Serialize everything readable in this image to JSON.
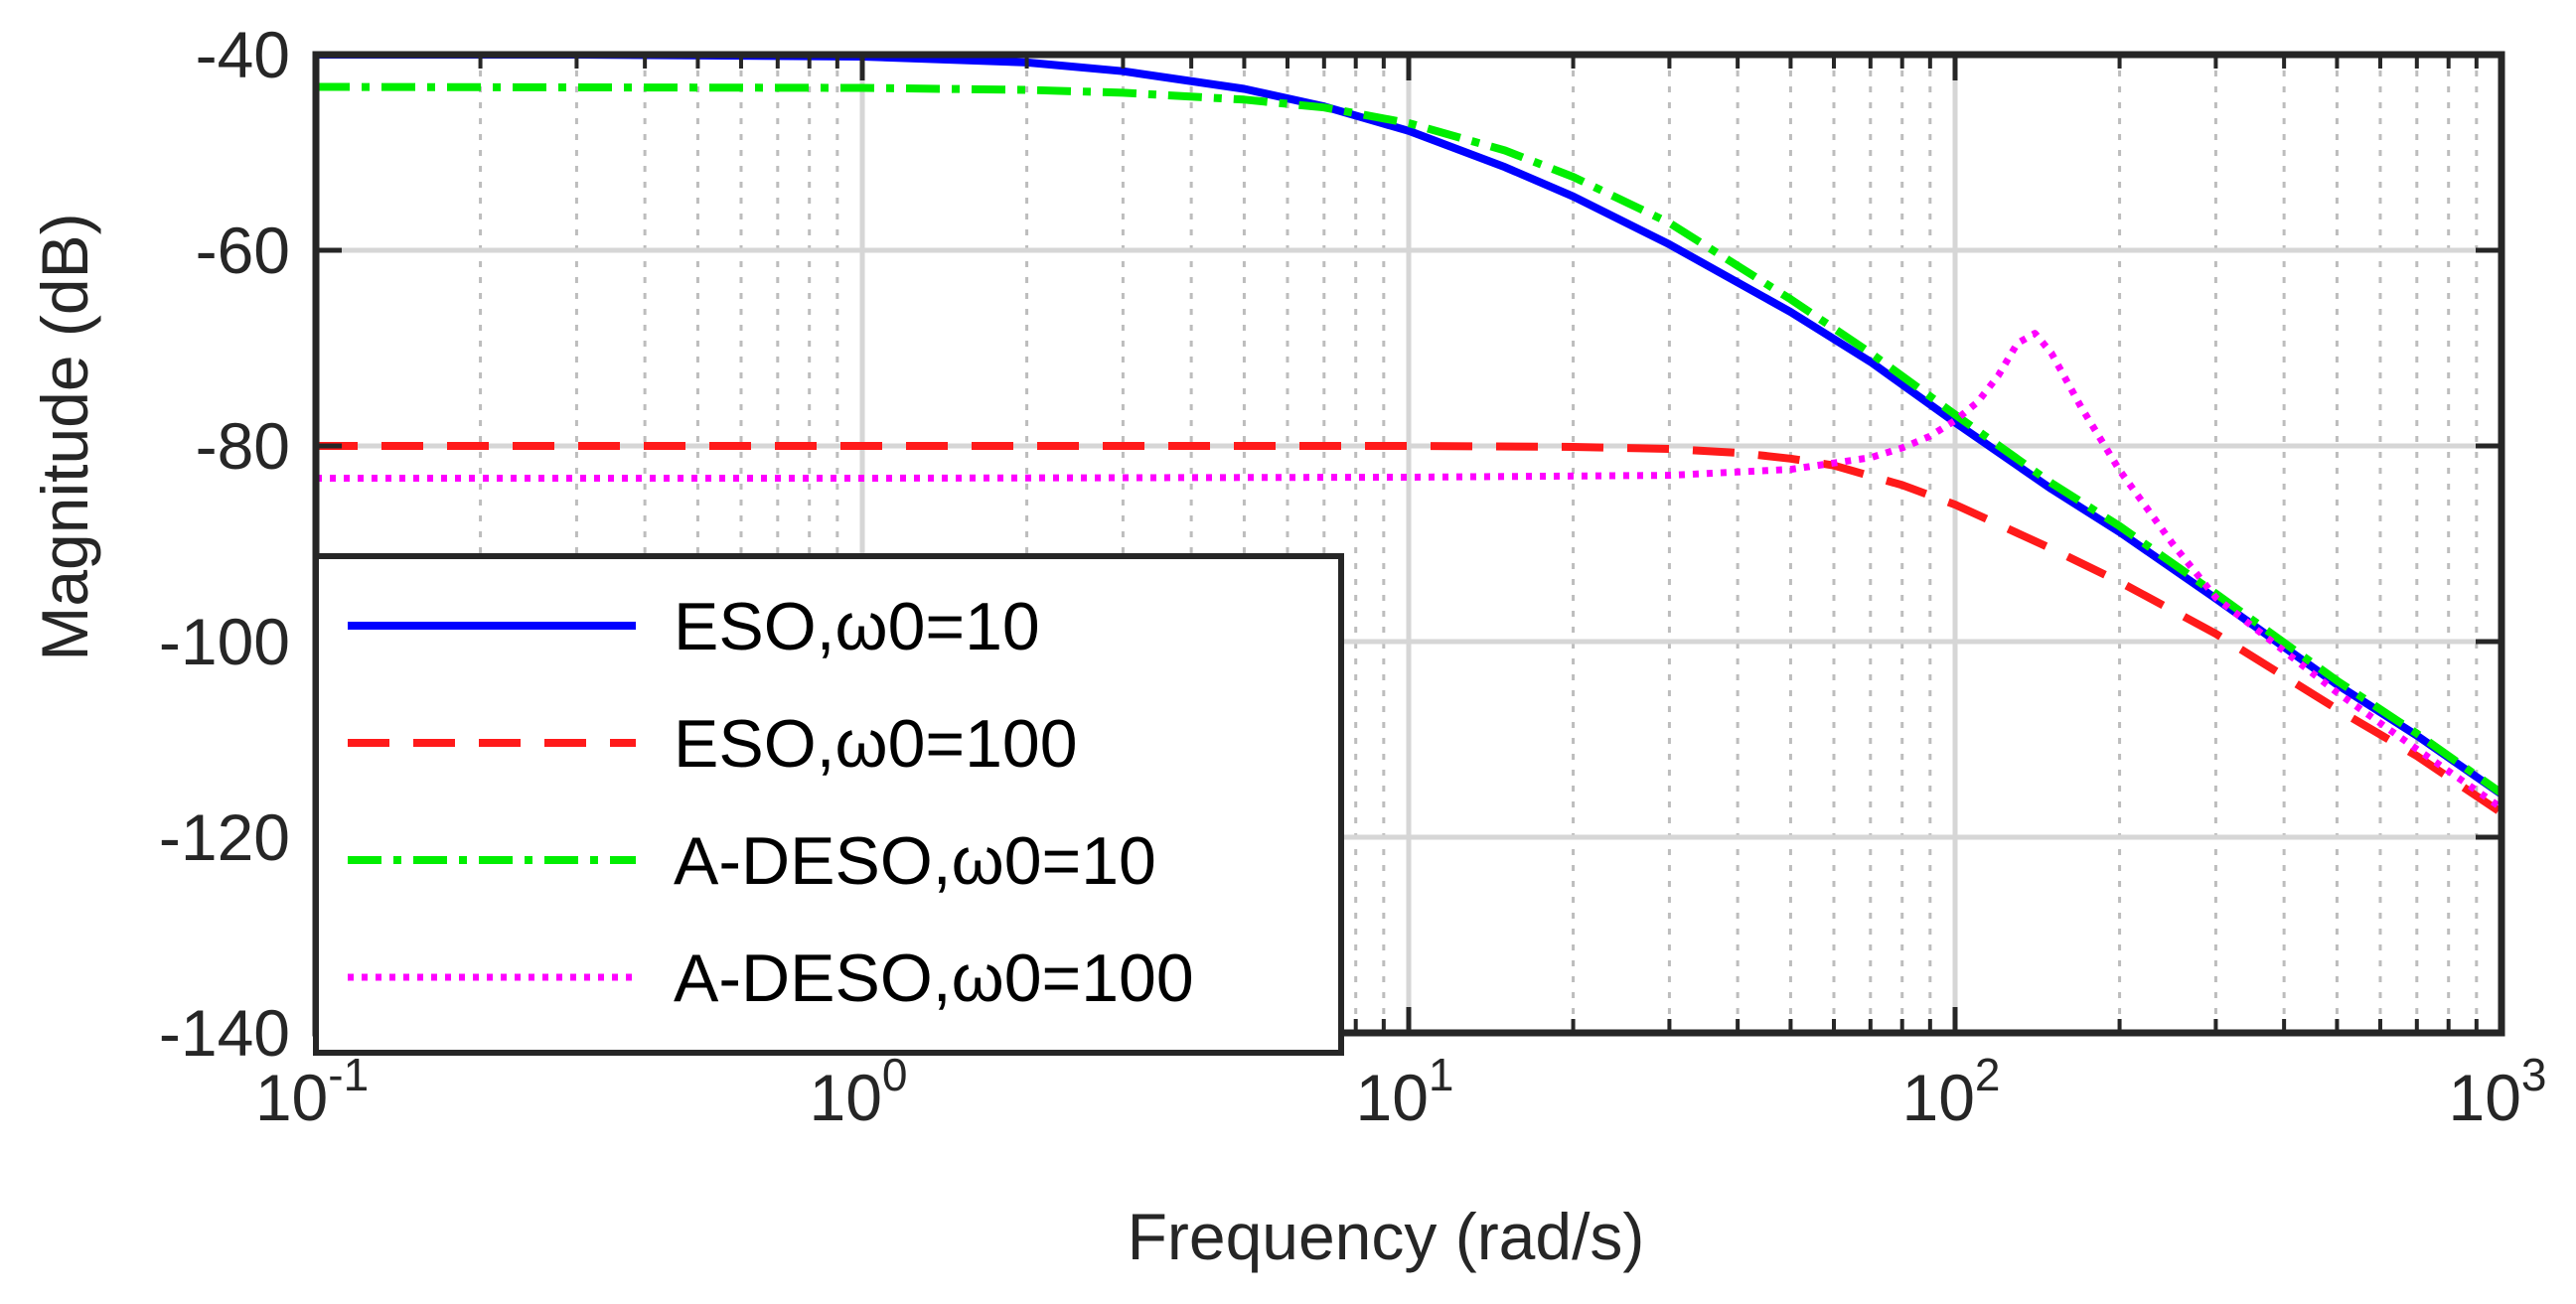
{
  "chart_data": {
    "type": "line",
    "title": "",
    "xlabel": "Frequency (rad/s)",
    "ylabel": "Magnitude (dB)",
    "xscale": "log",
    "xlim": [
      0.1,
      1000
    ],
    "ylim": [
      -140,
      -40
    ],
    "grid": true,
    "legend_position": "bottom-left",
    "xticks": [
      {
        "base": "10",
        "exp": "-1",
        "value": 0.1
      },
      {
        "base": "10",
        "exp": "0",
        "value": 1
      },
      {
        "base": "10",
        "exp": "1",
        "value": 10
      },
      {
        "base": "10",
        "exp": "2",
        "value": 100
      },
      {
        "base": "10",
        "exp": "3",
        "value": 1000
      }
    ],
    "yticks": [
      {
        "label": "-40",
        "value": -40
      },
      {
        "label": "-60",
        "value": -60
      },
      {
        "label": "-80",
        "value": -80
      },
      {
        "label": "-100",
        "value": -100
      },
      {
        "label": "-120",
        "value": -120
      },
      {
        "label": "-140",
        "value": -140
      }
    ],
    "series": [
      {
        "name": "ESO,ω0=10",
        "color": "#0000ff",
        "style": "solid",
        "x": [
          0.1,
          0.3,
          1,
          2,
          3,
          5,
          7,
          10,
          15,
          20,
          30,
          50,
          70,
          100,
          150,
          200,
          300,
          500,
          700,
          1000
        ],
        "y": [
          -40,
          -40,
          -40.2,
          -40.8,
          -41.7,
          -43.5,
          -45.3,
          -47.8,
          -51.5,
          -54.5,
          -59.4,
          -66.3,
          -71.4,
          -77.6,
          -84.4,
          -88.8,
          -95.6,
          -104.4,
          -109.6,
          -115.6
        ]
      },
      {
        "name": "ESO,ω0=100",
        "color": "#ff1a1a",
        "style": "dashed",
        "x": [
          0.1,
          1,
          10,
          20,
          30,
          40,
          50,
          60,
          80,
          100,
          150,
          200,
          300,
          500,
          700,
          1000
        ],
        "y": [
          -80,
          -80,
          -80,
          -80.1,
          -80.3,
          -80.7,
          -81.3,
          -82,
          -84,
          -86,
          -90.5,
          -93.9,
          -99.2,
          -106.9,
          -111.7,
          -117.5
        ]
      },
      {
        "name": "A-DESO,ω0=10",
        "color": "#00ee00",
        "style": "dashdot",
        "x": [
          0.1,
          1,
          2,
          3,
          5,
          7,
          10,
          15,
          20,
          30,
          50,
          70,
          100,
          150,
          200,
          300,
          500,
          700,
          1000
        ],
        "y": [
          -43.3,
          -43.4,
          -43.6,
          -43.9,
          -44.6,
          -45.4,
          -47,
          -49.8,
          -52.5,
          -57.2,
          -65,
          -70.5,
          -76.8,
          -83.8,
          -88.2,
          -95.1,
          -104,
          -109.4,
          -115.5
        ]
      },
      {
        "name": "A-DESO,ω0=100",
        "color": "#ff00ff",
        "style": "dotted",
        "x": [
          0.1,
          1,
          10,
          30,
          50,
          70,
          80,
          90,
          100,
          110,
          120,
          130,
          140,
          150,
          170,
          200,
          250,
          300,
          500,
          700,
          1000
        ],
        "y": [
          -83.3,
          -83.3,
          -83.2,
          -83,
          -82.4,
          -81.2,
          -80.2,
          -79,
          -77.4,
          -75.5,
          -72.8,
          -69.5,
          -68.5,
          -70.5,
          -76,
          -82.5,
          -90,
          -95.5,
          -105.2,
          -111,
          -117
        ]
      }
    ]
  }
}
